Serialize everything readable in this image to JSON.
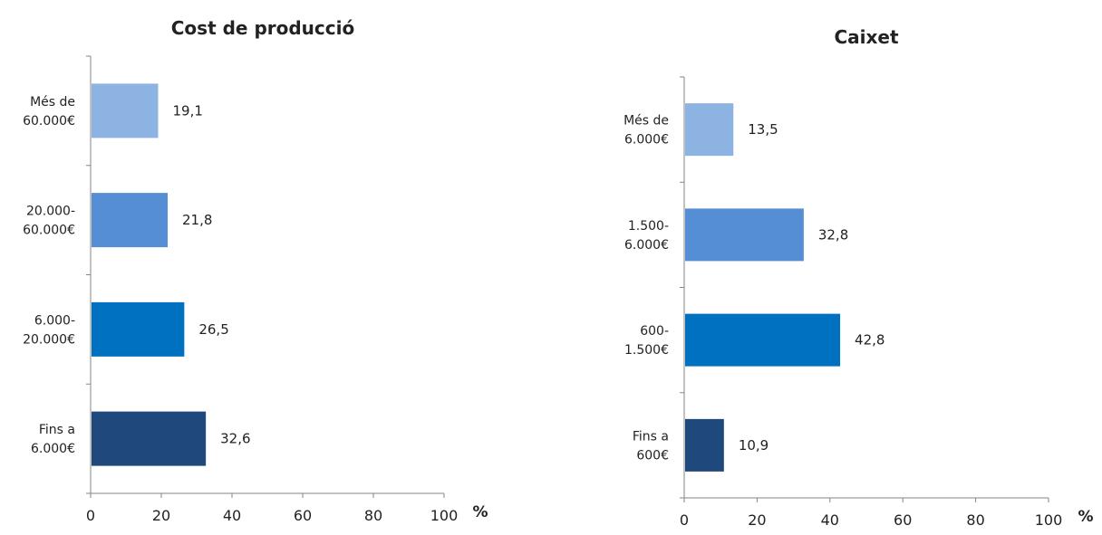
{
  "chart_data": [
    {
      "type": "bar",
      "orientation": "horizontal",
      "title": "Cost de producció",
      "categories": [
        [
          "Més de",
          "60.000€"
        ],
        [
          "20.000-",
          "60.000€"
        ],
        [
          "6.000-",
          "20.000€"
        ],
        [
          "Fins a",
          "6.000€"
        ]
      ],
      "values": [
        19.1,
        21.8,
        26.5,
        32.6
      ],
      "value_labels": [
        "19,1",
        "21,8",
        "26,5",
        "32,6"
      ],
      "colors": [
        "#8DB3E2",
        "#558ED5",
        "#0070C0",
        "#1F497D"
      ],
      "xlim": [
        0,
        100
      ],
      "xticks": [
        "0",
        "20",
        "40",
        "60",
        "80",
        "100"
      ],
      "xunit": "%",
      "grid": false
    },
    {
      "type": "bar",
      "orientation": "horizontal",
      "title": "Caixet",
      "categories": [
        [
          "Més de",
          "6.000€"
        ],
        [
          "1.500-",
          "6.000€"
        ],
        [
          "600-",
          "1.500€"
        ],
        [
          "Fins a",
          "600€"
        ]
      ],
      "values": [
        13.5,
        32.8,
        42.8,
        10.9
      ],
      "value_labels": [
        "13,5",
        "32,8",
        "42,8",
        "10,9"
      ],
      "colors": [
        "#8DB3E2",
        "#558ED5",
        "#0070C0",
        "#1F497D"
      ],
      "xlim": [
        0,
        100
      ],
      "xticks": [
        "0",
        "20",
        "40",
        "60",
        "80",
        "100"
      ],
      "xunit": "%",
      "grid": false
    }
  ]
}
